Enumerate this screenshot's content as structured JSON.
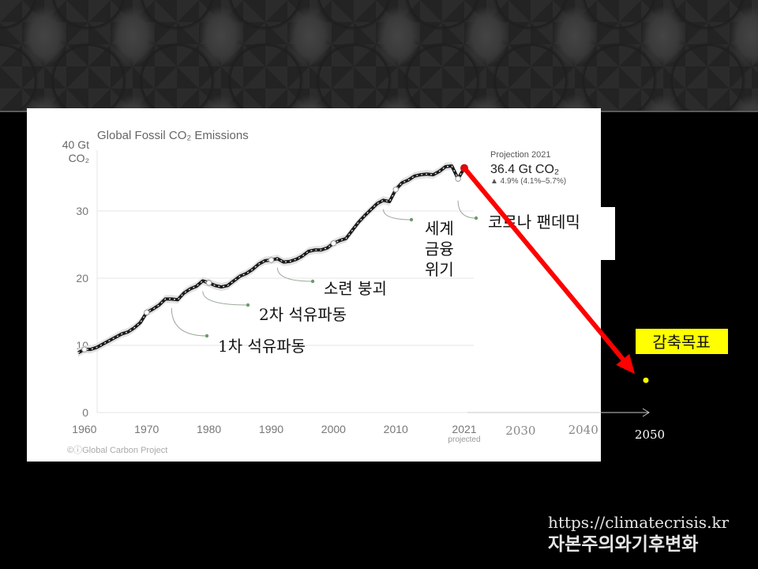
{
  "chart_data": {
    "type": "line",
    "title": "Global Fossil CO₂ Emissions",
    "ylabel": [
      "40 Gt",
      "CO₂"
    ],
    "ylim": [
      0,
      40
    ],
    "xlim": [
      1959,
      2021
    ],
    "yticks": [
      0,
      10,
      20,
      30
    ],
    "xticks": [
      "1960",
      "1970",
      "1980",
      "1990",
      "2000",
      "2010",
      "2021"
    ],
    "xtick_note": "projected",
    "extra_xticks": [
      "2030",
      "2040",
      "2050"
    ],
    "credit": "©ⓘGlobal Carbon Project",
    "grid": true,
    "series": [
      {
        "x": [
          1959,
          1960,
          1961,
          1962,
          1963,
          1964,
          1965,
          1966,
          1967,
          1968,
          1969,
          1970,
          1971,
          1972,
          1973,
          1974,
          1975,
          1976,
          1977,
          1978,
          1979,
          1980,
          1981,
          1982,
          1983,
          1984,
          1985,
          1986,
          1987,
          1988,
          1989,
          1990,
          1991,
          1992,
          1993,
          1994,
          1995,
          1996,
          1997,
          1998,
          1999,
          2000,
          2001,
          2002,
          2003,
          2004,
          2005,
          2006,
          2007,
          2008,
          2009,
          2010,
          2011,
          2012,
          2013,
          2014,
          2015,
          2016,
          2017,
          2018,
          2019,
          2020,
          2021
        ],
        "values": [
          8.9,
          9.4,
          9.4,
          9.7,
          10.2,
          10.7,
          11.2,
          11.7,
          12.0,
          12.6,
          13.4,
          14.9,
          15.4,
          16.0,
          16.9,
          16.9,
          16.8,
          17.8,
          18.4,
          18.8,
          19.6,
          19.3,
          18.9,
          18.7,
          18.9,
          19.6,
          20.3,
          20.7,
          21.3,
          22.1,
          22.6,
          22.7,
          22.9,
          22.4,
          22.5,
          22.8,
          23.3,
          24.0,
          24.2,
          24.2,
          24.5,
          25.2,
          25.6,
          25.9,
          27.1,
          28.3,
          29.3,
          30.2,
          31.1,
          31.6,
          31.4,
          33.2,
          34.2,
          34.6,
          35.2,
          35.4,
          35.5,
          35.4,
          35.9,
          36.6,
          36.7,
          34.8,
          36.4
        ]
      }
    ],
    "highlight_points": [
      {
        "x": 1960,
        "y": 9.4
      },
      {
        "x": 1970,
        "y": 14.9
      },
      {
        "x": 1980,
        "y": 19.3
      },
      {
        "x": 1990,
        "y": 22.7
      },
      {
        "x": 2000,
        "y": 25.2
      },
      {
        "x": 2010,
        "y": 33.2
      },
      {
        "x": 2020,
        "y": 34.8
      }
    ],
    "projection": {
      "title": "Projection 2021",
      "value": "36.4 Gt CO₂",
      "change": "▲ 4.9% (4.1%–5.7%)"
    },
    "target_arrow": {
      "from": {
        "x": 2021,
        "y": 36.4
      },
      "to": {
        "x": 2050,
        "y": 4.8
      }
    },
    "target_label": "감축목표",
    "annotations": [
      {
        "year": 1974,
        "y": 16.5,
        "text": [
          "1차 석유파동"
        ]
      },
      {
        "year": 1979,
        "y": 19.0,
        "text": [
          "2차 석유파동"
        ]
      },
      {
        "year": 1991,
        "y": 22.5,
        "text": [
          "소련 붕괴"
        ]
      },
      {
        "year": 2008,
        "y": 31.2,
        "text": [
          "세계",
          "금융",
          "위기"
        ]
      },
      {
        "year": 2020,
        "y": 32.5,
        "text": [
          "코로나 팬데믹"
        ]
      }
    ]
  },
  "colors": {
    "line": "#1a1a1a",
    "band": "#e2e2e2",
    "grid": "#e5e5e5",
    "axis_text": "#777777",
    "leader": "#9aa89a",
    "leader_dot": "#6c9a6c",
    "arrow": "#ff0000",
    "target_box": "#ffff00",
    "target_dot": "#ffff00",
    "extra_axis": "#c8c8c8"
  },
  "footer": {
    "url": "https://climatecrisis.kr",
    "tag": "자본주의와기후변화"
  }
}
